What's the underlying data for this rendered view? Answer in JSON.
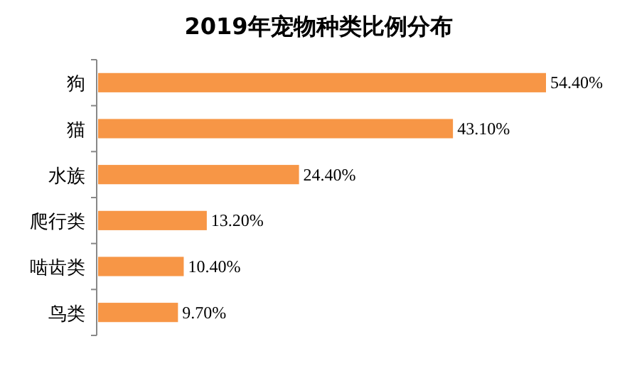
{
  "chart_data": {
    "type": "bar",
    "orientation": "horizontal",
    "title": "2019年宠物种类比例分布",
    "categories": [
      "狗",
      "猫",
      "水族",
      "爬行类",
      "啮齿类",
      "鸟类"
    ],
    "values": [
      54.4,
      43.1,
      24.4,
      13.2,
      10.4,
      9.7
    ],
    "value_labels": [
      "54.40%",
      "43.10%",
      "24.40%",
      "13.20%",
      "10.40%",
      "9.70%"
    ],
    "color": "#f79646"
  }
}
